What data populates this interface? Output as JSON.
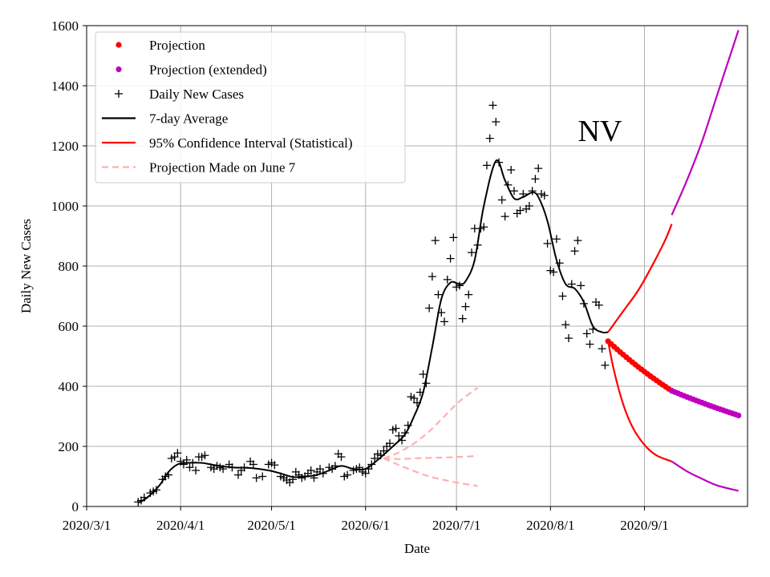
{
  "chart_data": {
    "type": "line",
    "title": "",
    "annotation": "NV",
    "xlabel": "Date",
    "ylabel": "Daily New Cases",
    "x_ticks": [
      "2020/3/1",
      "2020/4/1",
      "2020/5/1",
      "2020/6/1",
      "2020/7/1",
      "2020/8/1",
      "2020/9/1"
    ],
    "x_range": [
      "2020-03-01",
      "2020-10-05"
    ],
    "y_ticks": [
      0,
      200,
      400,
      600,
      800,
      1000,
      1200,
      1400,
      1600
    ],
    "ylim": [
      0,
      1600
    ],
    "grid": true,
    "legend_position": "top-left",
    "colors": {
      "daily": "#000000",
      "average": "#000000",
      "projection": "#ff0000",
      "projection_extended": "#bf00bf",
      "ci": "#ff0000",
      "ci_extended": "#bf00bf",
      "june7": "#ffb0b0"
    },
    "legend": [
      {
        "label": "Projection",
        "key": "projection",
        "style": "dot"
      },
      {
        "label": "Projection (extended)",
        "key": "projection_extended",
        "style": "dot"
      },
      {
        "label": "Daily New Cases",
        "key": "daily",
        "style": "plus"
      },
      {
        "label": "7-day Average",
        "key": "average",
        "style": "line"
      },
      {
        "label": "95% Confidence Interval (Statistical)",
        "key": "ci",
        "style": "line"
      },
      {
        "label": "Projection Made on June 7",
        "key": "june7",
        "style": "dash"
      }
    ],
    "series": {
      "daily_new_cases": {
        "name": "Daily New Cases",
        "points": [
          [
            "2020-03-18",
            15
          ],
          [
            "2020-03-19",
            20
          ],
          [
            "2020-03-20",
            30
          ],
          [
            "2020-03-22",
            45
          ],
          [
            "2020-03-23",
            50
          ],
          [
            "2020-03-24",
            55
          ],
          [
            "2020-03-26",
            90
          ],
          [
            "2020-03-27",
            100
          ],
          [
            "2020-03-28",
            105
          ],
          [
            "2020-03-29",
            160
          ],
          [
            "2020-03-30",
            165
          ],
          [
            "2020-03-31",
            178
          ],
          [
            "2020-04-01",
            150
          ],
          [
            "2020-04-02",
            140
          ],
          [
            "2020-04-03",
            155
          ],
          [
            "2020-04-04",
            130
          ],
          [
            "2020-04-05",
            145
          ],
          [
            "2020-04-06",
            120
          ],
          [
            "2020-04-07",
            165
          ],
          [
            "2020-04-08",
            165
          ],
          [
            "2020-04-09",
            170
          ],
          [
            "2020-04-11",
            130
          ],
          [
            "2020-04-12",
            125
          ],
          [
            "2020-04-13",
            135
          ],
          [
            "2020-04-14",
            130
          ],
          [
            "2020-04-15",
            125
          ],
          [
            "2020-04-17",
            140
          ],
          [
            "2020-04-18",
            130
          ],
          [
            "2020-04-20",
            105
          ],
          [
            "2020-04-21",
            120
          ],
          [
            "2020-04-22",
            130
          ],
          [
            "2020-04-24",
            150
          ],
          [
            "2020-04-25",
            140
          ],
          [
            "2020-04-26",
            95
          ],
          [
            "2020-04-28",
            100
          ],
          [
            "2020-04-30",
            140
          ],
          [
            "2020-05-01",
            145
          ],
          [
            "2020-05-02",
            138
          ],
          [
            "2020-05-04",
            100
          ],
          [
            "2020-05-05",
            95
          ],
          [
            "2020-05-06",
            88
          ],
          [
            "2020-05-07",
            80
          ],
          [
            "2020-05-08",
            90
          ],
          [
            "2020-05-09",
            115
          ],
          [
            "2020-05-10",
            105
          ],
          [
            "2020-05-11",
            95
          ],
          [
            "2020-05-12",
            100
          ],
          [
            "2020-05-13",
            110
          ],
          [
            "2020-05-14",
            120
          ],
          [
            "2020-05-15",
            95
          ],
          [
            "2020-05-16",
            115
          ],
          [
            "2020-05-17",
            125
          ],
          [
            "2020-05-18",
            110
          ],
          [
            "2020-05-20",
            130
          ],
          [
            "2020-05-21",
            125
          ],
          [
            "2020-05-22",
            135
          ],
          [
            "2020-05-23",
            175
          ],
          [
            "2020-05-24",
            165
          ],
          [
            "2020-05-25",
            100
          ],
          [
            "2020-05-26",
            105
          ],
          [
            "2020-05-28",
            120
          ],
          [
            "2020-05-29",
            125
          ],
          [
            "2020-05-30",
            130
          ],
          [
            "2020-05-31",
            115
          ],
          [
            "2020-06-01",
            110
          ],
          [
            "2020-06-02",
            125
          ],
          [
            "2020-06-03",
            140
          ],
          [
            "2020-06-04",
            160
          ],
          [
            "2020-06-05",
            175
          ],
          [
            "2020-06-06",
            170
          ],
          [
            "2020-06-07",
            185
          ],
          [
            "2020-06-08",
            200
          ],
          [
            "2020-06-09",
            210
          ],
          [
            "2020-06-10",
            255
          ],
          [
            "2020-06-11",
            260
          ],
          [
            "2020-06-12",
            235
          ],
          [
            "2020-06-13",
            220
          ],
          [
            "2020-06-14",
            245
          ],
          [
            "2020-06-15",
            270
          ],
          [
            "2020-06-16",
            365
          ],
          [
            "2020-06-17",
            360
          ],
          [
            "2020-06-18",
            345
          ],
          [
            "2020-06-19",
            380
          ],
          [
            "2020-06-20",
            440
          ],
          [
            "2020-06-21",
            410
          ],
          [
            "2020-06-22",
            660
          ],
          [
            "2020-06-23",
            765
          ],
          [
            "2020-06-24",
            885
          ],
          [
            "2020-06-25",
            705
          ],
          [
            "2020-06-26",
            645
          ],
          [
            "2020-06-27",
            615
          ],
          [
            "2020-06-28",
            755
          ],
          [
            "2020-06-29",
            825
          ],
          [
            "2020-06-30",
            895
          ],
          [
            "2020-07-01",
            730
          ],
          [
            "2020-07-02",
            735
          ],
          [
            "2020-07-03",
            625
          ],
          [
            "2020-07-04",
            665
          ],
          [
            "2020-07-05",
            705
          ],
          [
            "2020-07-06",
            845
          ],
          [
            "2020-07-07",
            925
          ],
          [
            "2020-07-08",
            870
          ],
          [
            "2020-07-09",
            925
          ],
          [
            "2020-07-10",
            930
          ],
          [
            "2020-07-11",
            1135
          ],
          [
            "2020-07-12",
            1225
          ],
          [
            "2020-07-13",
            1335
          ],
          [
            "2020-07-14",
            1280
          ],
          [
            "2020-07-15",
            1145
          ],
          [
            "2020-07-16",
            1020
          ],
          [
            "2020-07-17",
            965
          ],
          [
            "2020-07-18",
            1070
          ],
          [
            "2020-07-19",
            1120
          ],
          [
            "2020-07-20",
            1050
          ],
          [
            "2020-07-21",
            975
          ],
          [
            "2020-07-22",
            985
          ],
          [
            "2020-07-23",
            1040
          ],
          [
            "2020-07-24",
            990
          ],
          [
            "2020-07-25",
            1000
          ],
          [
            "2020-07-26",
            1050
          ],
          [
            "2020-07-27",
            1090
          ],
          [
            "2020-07-28",
            1125
          ],
          [
            "2020-07-29",
            1040
          ],
          [
            "2020-07-30",
            1035
          ],
          [
            "2020-07-31",
            875
          ],
          [
            "2020-08-01",
            785
          ],
          [
            "2020-08-02",
            780
          ],
          [
            "2020-08-03",
            890
          ],
          [
            "2020-08-04",
            810
          ],
          [
            "2020-08-05",
            700
          ],
          [
            "2020-08-06",
            605
          ],
          [
            "2020-08-07",
            560
          ],
          [
            "2020-08-08",
            740
          ],
          [
            "2020-08-09",
            850
          ],
          [
            "2020-08-10",
            885
          ],
          [
            "2020-08-11",
            735
          ],
          [
            "2020-08-12",
            675
          ],
          [
            "2020-08-13",
            575
          ],
          [
            "2020-08-14",
            540
          ],
          [
            "2020-08-15",
            590
          ],
          [
            "2020-08-16",
            680
          ],
          [
            "2020-08-17",
            670
          ],
          [
            "2020-08-18",
            525
          ],
          [
            "2020-08-19",
            470
          ]
        ]
      },
      "seven_day_average": {
        "name": "7-day Average",
        "points": [
          [
            "2020-03-18",
            12
          ],
          [
            "2020-03-21",
            30
          ],
          [
            "2020-03-25",
            70
          ],
          [
            "2020-03-28",
            115
          ],
          [
            "2020-03-31",
            140
          ],
          [
            "2020-04-03",
            145
          ],
          [
            "2020-04-08",
            145
          ],
          [
            "2020-04-12",
            138
          ],
          [
            "2020-04-18",
            130
          ],
          [
            "2020-04-24",
            128
          ],
          [
            "2020-04-30",
            120
          ],
          [
            "2020-05-04",
            110
          ],
          [
            "2020-05-08",
            98
          ],
          [
            "2020-05-12",
            100
          ],
          [
            "2020-05-16",
            105
          ],
          [
            "2020-05-20",
            120
          ],
          [
            "2020-05-24",
            135
          ],
          [
            "2020-05-28",
            125
          ],
          [
            "2020-06-01",
            125
          ],
          [
            "2020-06-05",
            155
          ],
          [
            "2020-06-10",
            200
          ],
          [
            "2020-06-14",
            240
          ],
          [
            "2020-06-17",
            300
          ],
          [
            "2020-06-20",
            380
          ],
          [
            "2020-06-23",
            530
          ],
          [
            "2020-06-26",
            690
          ],
          [
            "2020-06-29",
            745
          ],
          [
            "2020-07-02",
            740
          ],
          [
            "2020-07-04",
            750
          ],
          [
            "2020-07-07",
            820
          ],
          [
            "2020-07-10",
            1000
          ],
          [
            "2020-07-14",
            1150
          ],
          [
            "2020-07-17",
            1085
          ],
          [
            "2020-07-20",
            1025
          ],
          [
            "2020-07-23",
            1030
          ],
          [
            "2020-07-26",
            1045
          ],
          [
            "2020-07-28",
            1030
          ],
          [
            "2020-07-31",
            950
          ],
          [
            "2020-08-03",
            820
          ],
          [
            "2020-08-06",
            740
          ],
          [
            "2020-08-09",
            725
          ],
          [
            "2020-08-12",
            680
          ],
          [
            "2020-08-15",
            600
          ],
          [
            "2020-08-18",
            580
          ],
          [
            "2020-08-20",
            580
          ]
        ]
      },
      "projection": {
        "name": "Projection",
        "start": "2020-08-20",
        "end": "2020-09-10",
        "start_value": 550,
        "end_value": 385
      },
      "projection_extended": {
        "name": "Projection (extended)",
        "start": "2020-09-10",
        "end": "2020-10-02",
        "start_value": 385,
        "end_value": 303
      },
      "ci_upper": {
        "name": "95% Confidence Interval (Statistical)",
        "points": [
          [
            "2020-08-20",
            580
          ],
          [
            "2020-08-25",
            650
          ],
          [
            "2020-08-30",
            720
          ],
          [
            "2020-09-04",
            810
          ],
          [
            "2020-09-08",
            890
          ],
          [
            "2020-09-10",
            940
          ]
        ]
      },
      "ci_upper_extended": {
        "points": [
          [
            "2020-09-10",
            970
          ],
          [
            "2020-09-15",
            1085
          ],
          [
            "2020-09-20",
            1215
          ],
          [
            "2020-09-25",
            1370
          ],
          [
            "2020-10-02",
            1585
          ]
        ]
      },
      "ci_lower": {
        "name": "95% Confidence Interval (Statistical)",
        "points": [
          [
            "2020-08-20",
            550
          ],
          [
            "2020-08-22",
            450
          ],
          [
            "2020-08-25",
            340
          ],
          [
            "2020-08-28",
            265
          ],
          [
            "2020-09-01",
            205
          ],
          [
            "2020-09-05",
            170
          ],
          [
            "2020-09-10",
            150
          ]
        ]
      },
      "ci_lower_extended": {
        "points": [
          [
            "2020-09-10",
            150
          ],
          [
            "2020-09-15",
            117
          ],
          [
            "2020-09-20",
            92
          ],
          [
            "2020-09-25",
            70
          ],
          [
            "2020-10-02",
            52
          ]
        ]
      },
      "june7_projection": {
        "name": "Projection Made on June 7",
        "upper": [
          [
            "2020-06-07",
            160
          ],
          [
            "2020-06-12",
            180
          ],
          [
            "2020-06-17",
            210
          ],
          [
            "2020-06-22",
            250
          ],
          [
            "2020-06-27",
            300
          ],
          [
            "2020-07-02",
            350
          ],
          [
            "2020-07-08",
            395
          ]
        ],
        "middle": [
          [
            "2020-06-07",
            160
          ],
          [
            "2020-06-12",
            158
          ],
          [
            "2020-06-17",
            160
          ],
          [
            "2020-06-22",
            162
          ],
          [
            "2020-06-27",
            163
          ],
          [
            "2020-07-02",
            165
          ],
          [
            "2020-07-08",
            168
          ]
        ],
        "lower": [
          [
            "2020-06-07",
            160
          ],
          [
            "2020-06-12",
            138
          ],
          [
            "2020-06-17",
            118
          ],
          [
            "2020-06-22",
            100
          ],
          [
            "2020-06-27",
            88
          ],
          [
            "2020-07-02",
            78
          ],
          [
            "2020-07-08",
            68
          ]
        ]
      }
    }
  }
}
